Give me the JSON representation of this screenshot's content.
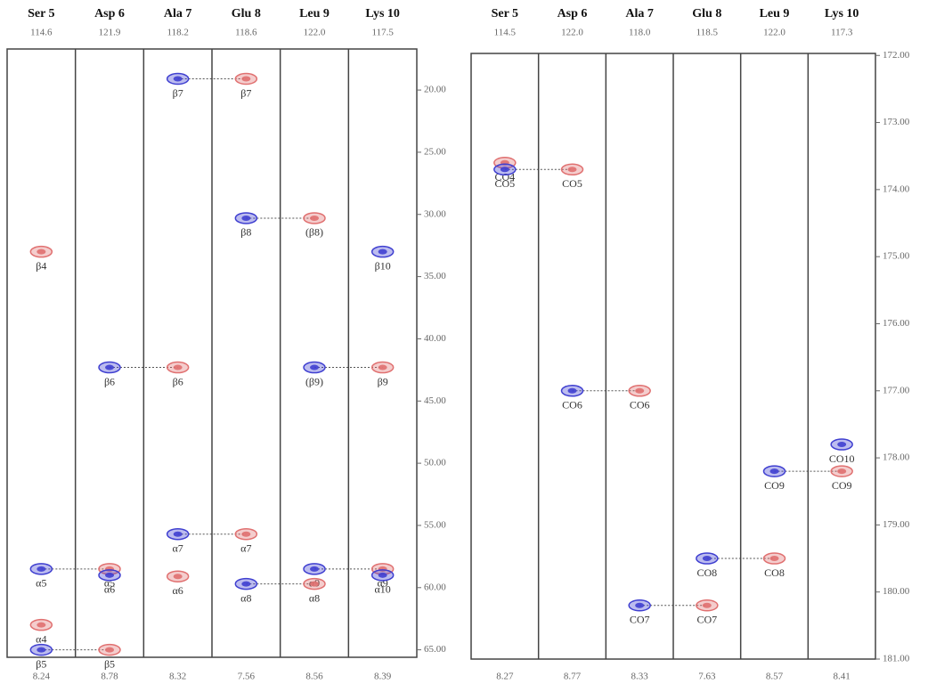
{
  "chart_data": [
    {
      "type": "strip",
      "ylim": [
        16.7,
        65.6
      ],
      "yticks": [
        {
          "value": 20,
          "label": "20.00"
        },
        {
          "value": 25,
          "label": "25.00"
        },
        {
          "value": 30,
          "label": "30.00"
        },
        {
          "value": 35,
          "label": "35.00"
        },
        {
          "value": 40,
          "label": "40.00"
        },
        {
          "value": 45,
          "label": "45.00"
        },
        {
          "value": 50,
          "label": "50.00"
        },
        {
          "value": 55,
          "label": "55.00"
        },
        {
          "value": 60,
          "label": "60.00"
        },
        {
          "value": 65,
          "label": "65.00"
        }
      ],
      "strips": [
        {
          "name": "Ser 5",
          "n15": "114.6",
          "h1": "8.24",
          "peaks": [
            {
              "y": 33,
              "color": "#e07070",
              "label": "β4"
            },
            {
              "y": 58.5,
              "color": "#3f3fd0",
              "label": "α5"
            },
            {
              "y": 63,
              "color": "#e07070",
              "label": "α4"
            },
            {
              "y": 65,
              "color": "#3f3fd0",
              "label": "β5"
            }
          ]
        },
        {
          "name": "Asp 6",
          "n15": "121.9",
          "h1": "8.78",
          "peaks": [
            {
              "y": 42.3,
              "color": "#3f3fd0",
              "label": "β6"
            },
            {
              "y": 58.5,
              "color": "#e07070",
              "label": "α5"
            },
            {
              "y": 59,
              "color": "#3f3fd0",
              "label": "α6"
            },
            {
              "y": 65,
              "color": "#e07070",
              "label": "β5"
            }
          ]
        },
        {
          "name": "Ala 7",
          "n15": "118.2",
          "h1": "8.32",
          "peaks": [
            {
              "y": 19.1,
              "color": "#3f3fd0",
              "label": "β7"
            },
            {
              "y": 42.3,
              "color": "#e07070",
              "label": "β6"
            },
            {
              "y": 55.7,
              "color": "#3f3fd0",
              "label": "α7"
            },
            {
              "y": 59.1,
              "color": "#e07070",
              "label": "α6"
            }
          ]
        },
        {
          "name": "Glu 8",
          "n15": "118.6",
          "h1": "7.56",
          "peaks": [
            {
              "y": 19.1,
              "color": "#e07070",
              "label": "β7"
            },
            {
              "y": 30.3,
              "color": "#3f3fd0",
              "label": "β8"
            },
            {
              "y": 55.7,
              "color": "#e07070",
              "label": "α7"
            },
            {
              "y": 59.7,
              "color": "#3f3fd0",
              "label": "α8"
            }
          ]
        },
        {
          "name": "Leu 9",
          "n15": "122.0",
          "h1": "8.56",
          "peaks": [
            {
              "y": 30.3,
              "color": "#e07070",
              "label": "(β8)"
            },
            {
              "y": 42.3,
              "color": "#3f3fd0",
              "label": "(β9)"
            },
            {
              "y": 58.5,
              "color": "#3f3fd0",
              "label": "α9"
            },
            {
              "y": 59.7,
              "color": "#e07070",
              "label": "α8"
            }
          ]
        },
        {
          "name": "Lys 10",
          "n15": "117.5",
          "h1": "8.39",
          "peaks": [
            {
              "y": 33,
              "color": "#3f3fd0",
              "label": "β10"
            },
            {
              "y": 42.3,
              "color": "#e07070",
              "label": "β9"
            },
            {
              "y": 58.5,
              "color": "#e07070",
              "label": "α9"
            },
            {
              "y": 59,
              "color": "#3f3fd0",
              "label": "α10"
            }
          ]
        }
      ]
    },
    {
      "type": "strip",
      "ylim": [
        171.97,
        181.0
      ],
      "yticks": [
        {
          "value": 172,
          "label": "172.00"
        },
        {
          "value": 173,
          "label": "173.00"
        },
        {
          "value": 174,
          "label": "174.00"
        },
        {
          "value": 175,
          "label": "175.00"
        },
        {
          "value": 176,
          "label": "176.00"
        },
        {
          "value": 177,
          "label": "177.00"
        },
        {
          "value": 178,
          "label": "178.00"
        },
        {
          "value": 179,
          "label": "179.00"
        },
        {
          "value": 180,
          "label": "180.00"
        },
        {
          "value": 181,
          "label": "181.00"
        }
      ],
      "strips": [
        {
          "name": "Ser 5",
          "n15": "114.5",
          "h1": "8.27",
          "peaks": [
            {
              "y": 173.6,
              "color": "#e07070",
              "label": "CO4"
            },
            {
              "y": 173.7,
              "color": "#3f3fd0",
              "label": "CO5"
            }
          ]
        },
        {
          "name": "Asp 6",
          "n15": "122.0",
          "h1": "8.77",
          "peaks": [
            {
              "y": 173.7,
              "color": "#e07070",
              "label": "CO5"
            },
            {
              "y": 177.0,
              "color": "#3f3fd0",
              "label": "CO6"
            }
          ]
        },
        {
          "name": "Ala 7",
          "n15": "118.0",
          "h1": "8.33",
          "peaks": [
            {
              "y": 177.0,
              "color": "#e07070",
              "label": "CO6"
            },
            {
              "y": 180.2,
              "color": "#3f3fd0",
              "label": "CO7"
            }
          ]
        },
        {
          "name": "Glu 8",
          "n15": "118.5",
          "h1": "7.63",
          "peaks": [
            {
              "y": 179.5,
              "color": "#3f3fd0",
              "label": "CO8"
            },
            {
              "y": 180.2,
              "color": "#e07070",
              "label": "CO7"
            }
          ]
        },
        {
          "name": "Leu 9",
          "n15": "122.0",
          "h1": "8.57",
          "peaks": [
            {
              "y": 178.2,
              "color": "#3f3fd0",
              "label": "CO9"
            },
            {
              "y": 179.5,
              "color": "#e07070",
              "label": "CO8"
            }
          ]
        },
        {
          "name": "Lys 10",
          "n15": "117.3",
          "h1": "8.41",
          "peaks": [
            {
              "y": 177.8,
              "color": "#3f3fd0",
              "label": "CO10"
            },
            {
              "y": 178.2,
              "color": "#e07070",
              "label": "CO9"
            }
          ]
        }
      ]
    }
  ]
}
